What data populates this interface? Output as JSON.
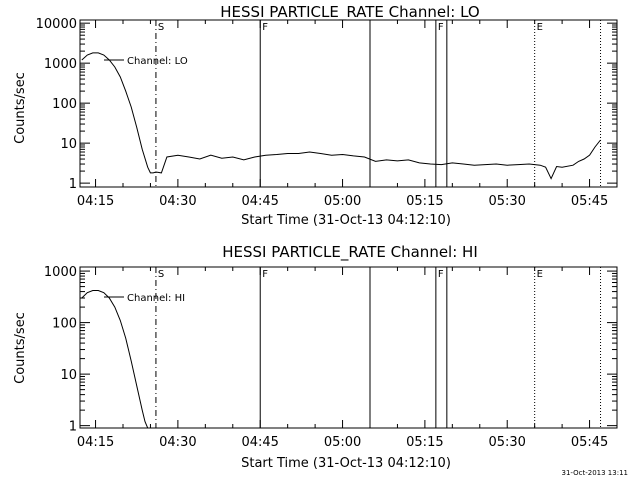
{
  "footer_timestamp": "31-Oct-2013 13:11",
  "chart_data": [
    {
      "type": "line",
      "title": "HESSI PARTICLE_RATE Channel: LO",
      "xlabel": "Start Time (31-Oct-13 04:12:10)",
      "ylabel": "Counts/sec",
      "xlim": [
        "04:12:10",
        "05:50:00"
      ],
      "x_ticks": [
        "04:15",
        "04:30",
        "04:45",
        "05:00",
        "05:15",
        "05:30",
        "05:45"
      ],
      "y_scale": "log",
      "ylim": [
        0.8,
        12000
      ],
      "y_ticks": [
        "1",
        "10",
        "100",
        "1000",
        "10000"
      ],
      "legend": "Channel: LO",
      "series": [
        {
          "name": "Channel: LO",
          "x": [
            "04:12:30",
            "04:13:30",
            "04:14:30",
            "04:15:30",
            "04:16:30",
            "04:17:30",
            "04:18:30",
            "04:19:30",
            "04:20:30",
            "04:21:30",
            "04:22:30",
            "04:23:30",
            "04:24:30",
            "04:25:00",
            "04:25:30",
            "04:26:00",
            "04:27:00",
            "04:28:00",
            "04:30:00",
            "04:32:00",
            "04:34:00",
            "04:36:00",
            "04:38:00",
            "04:40:00",
            "04:42:00",
            "04:44:00",
            "04:46:00",
            "04:48:00",
            "04:50:00",
            "04:52:00",
            "04:54:00",
            "04:56:00",
            "04:58:00",
            "05:00:00",
            "05:02:00",
            "05:04:00",
            "05:06:00",
            "05:08:00",
            "05:10:00",
            "05:12:00",
            "05:14:00",
            "05:16:00",
            "05:18:00",
            "05:20:00",
            "05:22:00",
            "05:24:00",
            "05:26:00",
            "05:28:00",
            "05:30:00",
            "05:32:00",
            "05:34:00",
            "05:36:00",
            "05:37:00",
            "05:38:00",
            "05:39:00",
            "05:40:00",
            "05:42:00",
            "05:43:00",
            "05:44:00",
            "05:45:00",
            "05:46:00",
            "05:47:00"
          ],
          "values": [
            1200,
            1600,
            1800,
            1800,
            1600,
            1200,
            800,
            450,
            200,
            80,
            25,
            7,
            2.5,
            1.8,
            1.8,
            1.9,
            1.8,
            4.5,
            5,
            4.5,
            4,
            5,
            4.2,
            4.5,
            3.8,
            4.5,
            5,
            5.2,
            5.5,
            5.5,
            6,
            5.5,
            5,
            5.2,
            4.8,
            4.5,
            3.5,
            3.8,
            3.6,
            3.8,
            3.2,
            3,
            2.9,
            3.2,
            3,
            2.8,
            2.9,
            3,
            2.8,
            2.9,
            3,
            2.8,
            2.5,
            1.3,
            2.6,
            2.5,
            2.8,
            3.5,
            4,
            5,
            8,
            12
          ]
        }
      ],
      "event_lines": [
        {
          "time": "04:26:00",
          "style": "dash-dot",
          "label": "S"
        },
        {
          "time": "04:45:00",
          "style": "solid",
          "label": "F"
        },
        {
          "time": "05:05:00",
          "style": "solid",
          "label": ""
        },
        {
          "time": "05:17:00",
          "style": "solid",
          "label": "F"
        },
        {
          "time": "05:19:00",
          "style": "solid",
          "label": ""
        },
        {
          "time": "05:35:00",
          "style": "dotted",
          "label": "E"
        },
        {
          "time": "05:47:00",
          "style": "dotted",
          "label": ""
        }
      ]
    },
    {
      "type": "line",
      "title": "HESSI PARTICLE_RATE Channel: HI",
      "xlabel": "Start Time (31-Oct-13 04:12:10)",
      "ylabel": "Counts/sec",
      "xlim": [
        "04:12:10",
        "05:50:00"
      ],
      "x_ticks": [
        "04:15",
        "04:30",
        "04:45",
        "05:00",
        "05:15",
        "05:30",
        "05:45"
      ],
      "y_scale": "log",
      "ylim": [
        0.9,
        1200
      ],
      "y_ticks": [
        "1",
        "10",
        "100",
        "1000"
      ],
      "legend": "Channel: HI",
      "series": [
        {
          "name": "Channel: HI",
          "x": [
            "04:12:30",
            "04:13:30",
            "04:14:30",
            "04:15:30",
            "04:16:30",
            "04:17:30",
            "04:18:30",
            "04:19:30",
            "04:20:30",
            "04:21:30",
            "04:22:30",
            "04:23:30",
            "04:24:00",
            "04:24:30",
            "04:25:00"
          ],
          "values": [
            300,
            380,
            420,
            420,
            380,
            300,
            200,
            110,
            50,
            18,
            6,
            2,
            1.2,
            0.9,
            0.9
          ]
        }
      ],
      "event_lines": [
        {
          "time": "04:26:00",
          "style": "dash-dot",
          "label": "S"
        },
        {
          "time": "04:45:00",
          "style": "solid",
          "label": "F"
        },
        {
          "time": "05:05:00",
          "style": "solid",
          "label": ""
        },
        {
          "time": "05:17:00",
          "style": "solid",
          "label": "F"
        },
        {
          "time": "05:19:00",
          "style": "solid",
          "label": ""
        },
        {
          "time": "05:35:00",
          "style": "dotted",
          "label": "E"
        },
        {
          "time": "05:47:00",
          "style": "dotted",
          "label": ""
        }
      ]
    }
  ]
}
